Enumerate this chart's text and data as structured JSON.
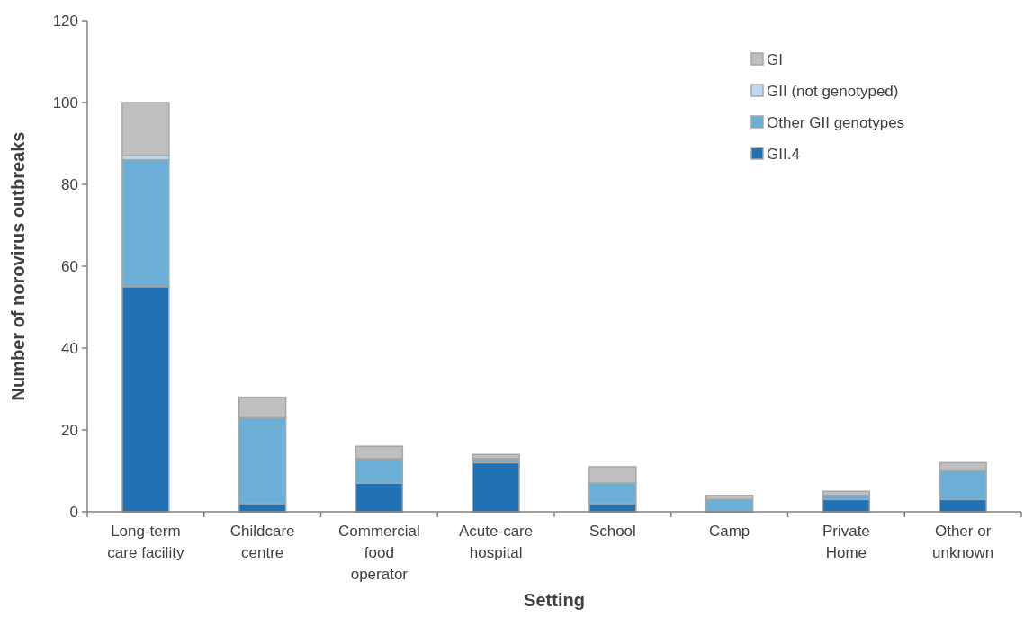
{
  "chart_data": {
    "type": "bar",
    "stacked": true,
    "xlabel": "Setting",
    "ylabel": "Number of norovirus outbreaks",
    "categories": [
      "Long-term care facility",
      "Childcare centre",
      "Commercial food operator",
      "Acute-care hospital",
      "School",
      "Camp",
      "Private Home",
      "Other or unknown"
    ],
    "series": [
      {
        "name": "GII.4",
        "color": "#2171b5",
        "values": [
          55,
          2,
          7,
          12,
          2,
          0,
          3,
          3
        ]
      },
      {
        "name": "Other GII genotypes",
        "color": "#6baed6",
        "values": [
          31,
          21,
          6,
          1,
          5,
          3,
          1,
          7
        ]
      },
      {
        "name": "GII (not genotyped)",
        "color": "#bdd7ee",
        "values": [
          1,
          0,
          0,
          0,
          0,
          0,
          0,
          0
        ]
      },
      {
        "name": "GI",
        "color": "#bfbfbf",
        "values": [
          13,
          5,
          3,
          1,
          4,
          1,
          1,
          2
        ]
      }
    ],
    "ylim": [
      0,
      120
    ],
    "yticks": [
      0,
      20,
      40,
      60,
      80,
      100,
      120
    ],
    "grid": false,
    "legend": "top right"
  }
}
